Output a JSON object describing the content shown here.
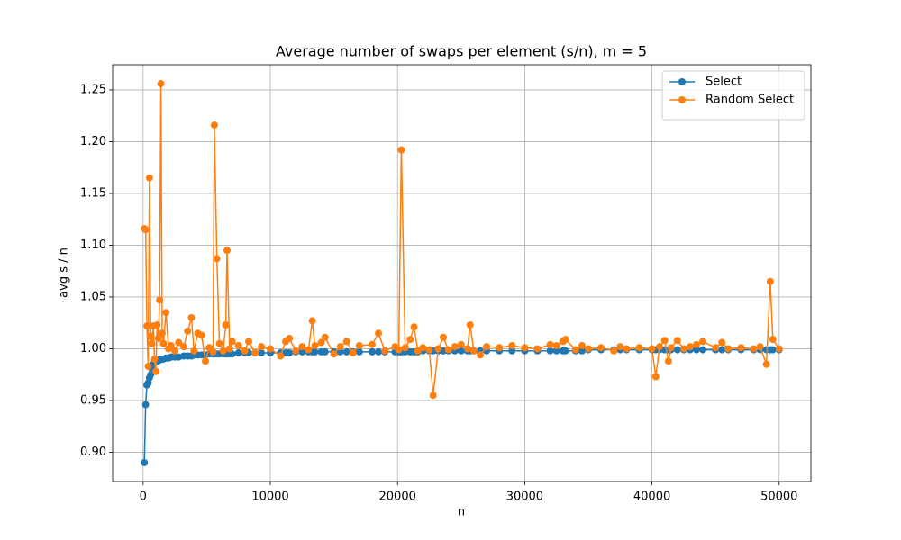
{
  "chart_data": {
    "type": "line",
    "title": "Average number of swaps per element (s/n), m = 5",
    "xlabel": "n",
    "ylabel": "avg s / n",
    "x": [
      100,
      200,
      300,
      400,
      500,
      600,
      700,
      800,
      900,
      1000,
      1100,
      1200,
      1300,
      1400,
      1500,
      1600,
      1800,
      2000,
      2200,
      2500,
      2800,
      3200,
      3500,
      3800,
      4000,
      4300,
      4600,
      4900,
      5200,
      5500,
      5600,
      5800,
      6000,
      6300,
      6500,
      6600,
      6800,
      7000,
      7500,
      8000,
      8300,
      8800,
      9300,
      10000,
      10800,
      11200,
      11500,
      12000,
      12500,
      13000,
      13300,
      13500,
      14000,
      14300,
      15000,
      15500,
      16000,
      16500,
      17000,
      18000,
      18500,
      19000,
      19800,
      20100,
      20300,
      20600,
      21000,
      21300,
      21600,
      22000,
      22500,
      22800,
      23200,
      23600,
      24000,
      24500,
      25000,
      25500,
      25700,
      26000,
      26500,
      27000,
      28000,
      29000,
      30000,
      31000,
      32000,
      32500,
      33000,
      33200,
      34000,
      34500,
      35000,
      36000,
      37000,
      37500,
      38000,
      39000,
      40000,
      40300,
      40600,
      41000,
      41300,
      41500,
      42000,
      42500,
      43000,
      43500,
      44000,
      45000,
      45500,
      46000,
      47000,
      48000,
      48500,
      49000,
      49300,
      49500,
      50000
    ],
    "series": [
      {
        "name": "Select",
        "color": "#1f77b4",
        "values": [
          0.89,
          0.946,
          0.965,
          0.967,
          0.972,
          0.975,
          0.98,
          0.985,
          0.987,
          0.988,
          0.988,
          0.989,
          0.989,
          0.99,
          0.99,
          0.99,
          0.991,
          0.991,
          0.992,
          0.992,
          0.992,
          0.993,
          0.993,
          0.993,
          0.994,
          0.994,
          0.994,
          0.994,
          0.995,
          0.995,
          0.995,
          0.995,
          0.995,
          0.995,
          0.995,
          0.995,
          0.995,
          0.995,
          0.996,
          0.996,
          0.996,
          0.996,
          0.996,
          0.996,
          0.996,
          0.996,
          0.996,
          0.997,
          0.997,
          0.997,
          0.997,
          0.997,
          0.997,
          0.997,
          0.997,
          0.997,
          0.997,
          0.997,
          0.997,
          0.997,
          0.997,
          0.997,
          0.997,
          0.997,
          0.997,
          0.997,
          0.997,
          0.997,
          0.997,
          0.998,
          0.998,
          0.998,
          0.998,
          0.998,
          0.998,
          0.998,
          0.998,
          0.998,
          0.998,
          0.998,
          0.998,
          0.998,
          0.998,
          0.998,
          0.998,
          0.998,
          0.998,
          0.998,
          0.998,
          0.998,
          0.998,
          0.998,
          0.999,
          0.999,
          0.999,
          0.999,
          0.999,
          0.999,
          0.999,
          0.999,
          0.999,
          0.999,
          0.999,
          0.999,
          0.999,
          0.999,
          0.999,
          0.999,
          0.999,
          0.999,
          0.999,
          0.999,
          0.999,
          0.999,
          0.999,
          0.999,
          0.999,
          0.999,
          0.999
        ]
      },
      {
        "name": "Random Select",
        "color": "#ff7f0e",
        "values": [
          1.116,
          1.115,
          1.022,
          0.983,
          1.165,
          1.012,
          1.005,
          1.022,
          0.99,
          0.978,
          1.023,
          1.01,
          1.047,
          1.256,
          1.015,
          1.005,
          1.035,
          1.0,
          1.003,
          0.998,
          1.006,
          1.002,
          1.017,
          1.03,
          0.998,
          1.015,
          1.013,
          0.988,
          1.001,
          0.997,
          1.216,
          1.087,
          1.005,
          0.998,
          1.023,
          1.095,
          1.0,
          1.007,
          1.003,
          0.998,
          1.007,
          0.996,
          1.002,
          1.0,
          0.993,
          1.007,
          1.01,
          0.998,
          1.002,
          0.999,
          1.027,
          1.003,
          1.006,
          1.011,
          0.995,
          1.002,
          1.007,
          0.996,
          1.003,
          1.004,
          1.015,
          0.998,
          1.002,
          0.999,
          1.192,
          1.001,
          1.009,
          1.021,
          0.998,
          1.001,
          0.999,
          0.955,
          1.0,
          1.011,
          0.999,
          1.002,
          1.004,
          1.0,
          1.023,
          0.998,
          0.994,
          1.002,
          1.001,
          1.003,
          1.001,
          1.0,
          1.004,
          1.003,
          1.007,
          1.009,
          0.999,
          1.003,
          1.0,
          1.001,
          0.998,
          1.002,
          1.0,
          1.001,
          1.0,
          0.973,
          1.002,
          1.008,
          0.988,
          1.001,
          1.008,
          1.0,
          1.002,
          1.004,
          1.007,
          1.001,
          1.006,
          1.0,
          1.001,
          1.0,
          1.002,
          0.985,
          1.065,
          1.009,
          1.0
        ]
      }
    ],
    "xlim": [
      -2395,
      52495
    ],
    "ylim": [
      0.8717,
      1.2743
    ],
    "xticks": [
      0,
      10000,
      20000,
      30000,
      40000,
      50000
    ],
    "yticks": [
      {
        "value": 0.9,
        "label": "0.90"
      },
      0.95,
      {
        "value": 1.0,
        "label": "1.00"
      },
      1.05,
      {
        "value": 1.1,
        "label": "1.10"
      },
      1.15,
      {
        "value": 1.2,
        "label": "1.20"
      },
      1.25
    ],
    "grid": true,
    "legend": "upper right"
  }
}
